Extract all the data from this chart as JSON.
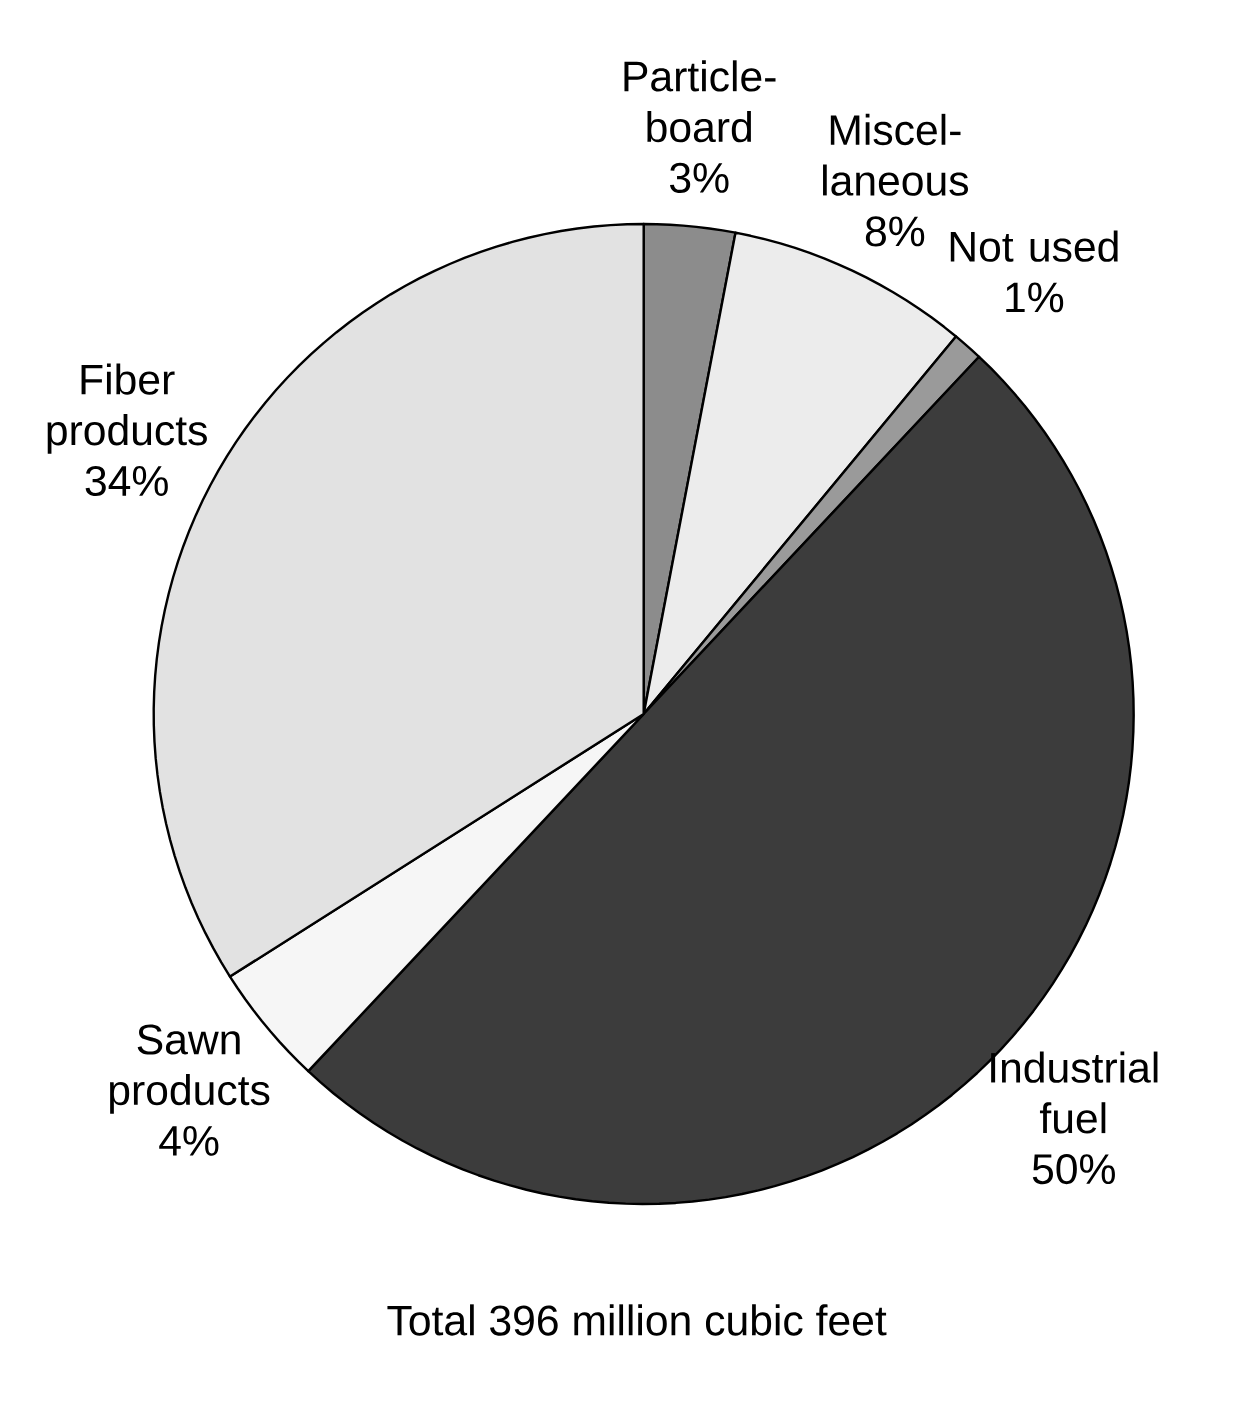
{
  "chart_data": {
    "type": "pie",
    "title": "Total 396 million cubic feet",
    "categories": [
      "Particle-board",
      "Miscel-laneous",
      "Not used",
      "Industrial fuel",
      "Sawn products",
      "Fiber products"
    ],
    "values": [
      3,
      8,
      1,
      50,
      4,
      34
    ],
    "value_labels": [
      "3%",
      "8%",
      "1%",
      "50%",
      "4%",
      "34%"
    ],
    "colors": [
      "#8c8c8c",
      "#ececec",
      "#9a9a9a",
      "#3c3c3c",
      "#f6f6f6",
      "#e2e2e2"
    ]
  }
}
